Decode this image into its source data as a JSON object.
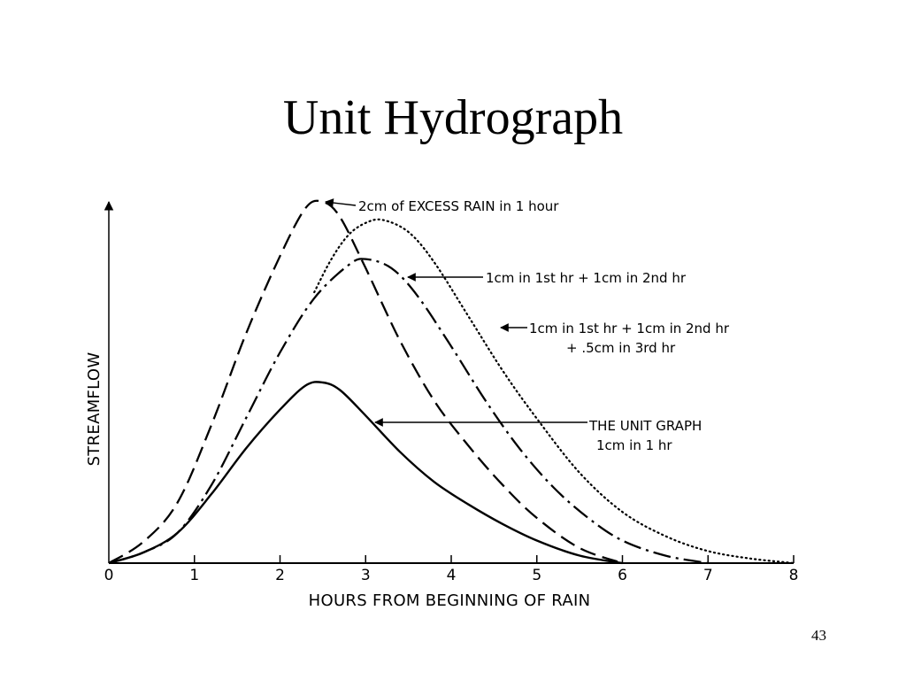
{
  "slide": {
    "title": "Unit Hydrograph",
    "page_number": "43"
  },
  "chart_data": {
    "type": "line",
    "xlabel": "HOURS FROM BEGINNING OF RAIN",
    "ylabel": "STREAMFLOW",
    "xlim": [
      0,
      8
    ],
    "x_ticks": [
      "0",
      "1",
      "2",
      "3",
      "4",
      "5",
      "6",
      "7",
      "8"
    ],
    "y_ticks": [],
    "grid": false,
    "legend": "none",
    "series": [
      {
        "key": "unit",
        "label_lines": [
          "THE UNIT GRAPH",
          "1cm in 1 hr"
        ],
        "style": "solid",
        "color": "#000000",
        "x": [
          0,
          0.4,
          0.8,
          1.2,
          1.6,
          2.0,
          2.3,
          2.5,
          2.7,
          3.0,
          3.4,
          3.8,
          4.2,
          4.6,
          5.0,
          5.5,
          6.0
        ],
        "y": [
          0,
          3.5,
          10,
          23,
          38,
          51,
          59,
          60,
          57.5,
          49,
          37,
          27,
          19.5,
          13,
          7.5,
          2.5,
          0
        ]
      },
      {
        "key": "two_cm",
        "label_lines": [
          "2cm of EXCESS RAIN in 1 hour"
        ],
        "style": "dashed",
        "color": "#000000",
        "x": [
          0,
          0.4,
          0.8,
          1.2,
          1.6,
          2.0,
          2.3,
          2.5,
          2.7,
          3.0,
          3.4,
          3.8,
          4.2,
          4.6,
          5.0,
          5.5,
          6.0
        ],
        "y": [
          0,
          7,
          20,
          46,
          76,
          102,
          118,
          120,
          115,
          98,
          74,
          54,
          39,
          26,
          15,
          5,
          0
        ]
      },
      {
        "key": "two_hr",
        "label_lines": [
          "1cm in 1st hr + 1cm in 2nd hr"
        ],
        "style": "dash-dot",
        "color": "#000000",
        "x": [
          0,
          0.4,
          0.8,
          1.2,
          1.6,
          2.0,
          2.4,
          2.8,
          3.0,
          3.3,
          3.6,
          4.0,
          4.4,
          4.8,
          5.2,
          5.6,
          6.0,
          6.5,
          7.0
        ],
        "y": [
          0,
          3.5,
          10,
          26,
          48,
          70,
          88,
          99,
          101,
          98,
          89,
          72,
          54,
          38,
          25,
          15,
          7.5,
          2.5,
          0
        ]
      },
      {
        "key": "three_hr",
        "label_lines": [
          "1cm in 1st hr + 1cm in 2nd hr",
          "+ .5cm in 3rd hr"
        ],
        "style": "dotted",
        "color": "#000000",
        "x": [
          2.4,
          2.6,
          2.8,
          3.0,
          3.2,
          3.5,
          3.8,
          4.2,
          4.6,
          5.0,
          5.5,
          6.0,
          6.5,
          7.0,
          7.5,
          8.0
        ],
        "y": [
          90,
          101,
          109,
          113,
          114,
          110,
          100,
          82,
          64,
          48,
          30,
          17,
          9,
          4,
          1.5,
          0
        ]
      }
    ]
  }
}
